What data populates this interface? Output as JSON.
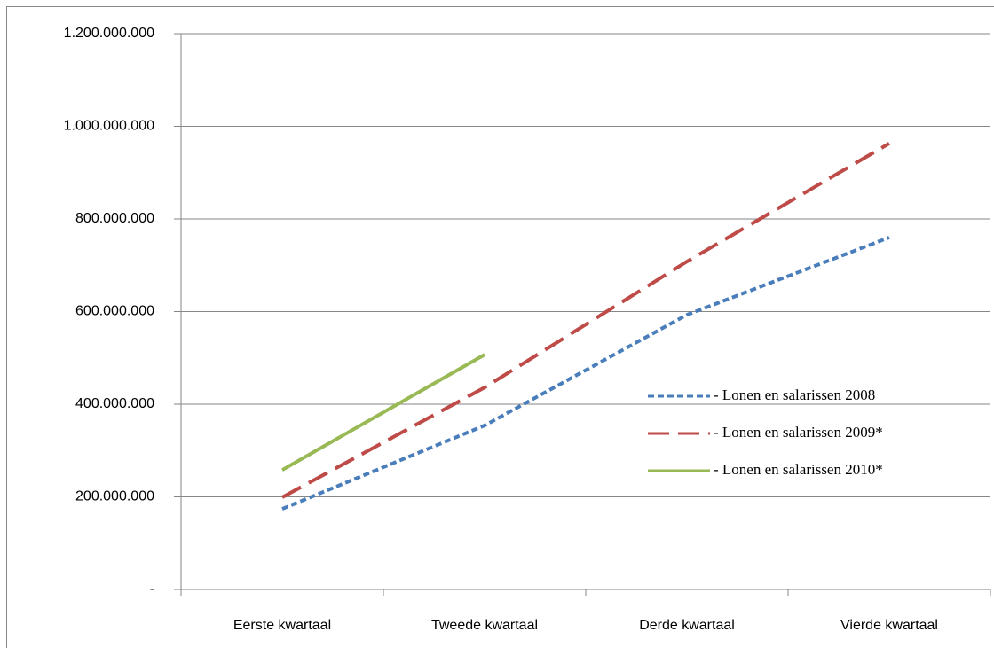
{
  "chart_data": {
    "type": "line",
    "categories": [
      "Eerste kwartaal",
      "Tweede kwartaal",
      "Derde kwartaal",
      "Vierde kwartaal"
    ],
    "series": [
      {
        "name": "- Lonen en salarissen 2008",
        "color": "#4a7ebb",
        "dash": "dot",
        "values": [
          174000000,
          354000000,
          593000000,
          760000000
        ]
      },
      {
        "name": "- Lonen en salarissen 2009*",
        "color": "#be4b48",
        "dash": "dash",
        "values": [
          199000000,
          436000000,
          708000000,
          963000000
        ]
      },
      {
        "name": "- Lonen en salarissen 2010*",
        "color": "#98b954",
        "dash": "solid",
        "values": [
          258000000,
          507000000,
          null,
          null
        ]
      }
    ],
    "ylim": [
      0,
      1200000000
    ],
    "yticks": [
      {
        "value": 0,
        "label": "-"
      },
      {
        "value": 200000000,
        "label": "200.000.000"
      },
      {
        "value": 400000000,
        "label": "400.000.000"
      },
      {
        "value": 600000000,
        "label": "600.000.000"
      },
      {
        "value": 800000000,
        "label": "800.000.000"
      },
      {
        "value": 1000000000,
        "label": "1.000.000.000"
      },
      {
        "value": 1200000000,
        "label": "1.200.000.000"
      }
    ],
    "grid": true,
    "legend": "right"
  }
}
